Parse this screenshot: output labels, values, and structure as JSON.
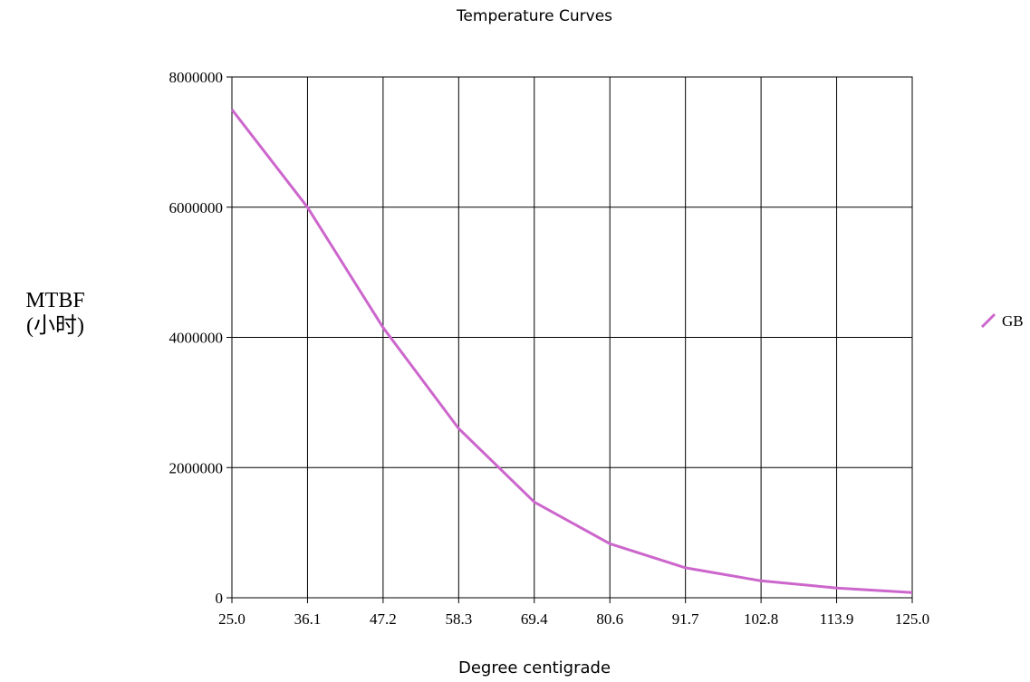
{
  "chart_data": {
    "type": "line",
    "title": "Temperature Curves",
    "xlabel": "Degree centigrade",
    "ylabel_lines": [
      "MTBF",
      "(小时)"
    ],
    "x": [
      25.0,
      36.1,
      47.2,
      58.3,
      69.4,
      80.6,
      91.7,
      102.8,
      113.9,
      125.0
    ],
    "x_tick_labels": [
      "25.0",
      "36.1",
      "47.2",
      "58.3",
      "69.4",
      "80.6",
      "91.7",
      "102.8",
      "113.9",
      "125.0"
    ],
    "y_ticks": [
      0,
      2000000,
      4000000,
      6000000,
      8000000
    ],
    "y_tick_labels": [
      "0",
      "2000000",
      "4000000",
      "6000000",
      "8000000"
    ],
    "ylim": [
      0,
      8000000
    ],
    "grid": true,
    "legend_position": "right",
    "series": [
      {
        "name": "GB",
        "color": "#cc66cc",
        "values": [
          7500000,
          6000000,
          4150000,
          2600000,
          1470000,
          830000,
          460000,
          260000,
          150000,
          80000
        ]
      }
    ]
  }
}
